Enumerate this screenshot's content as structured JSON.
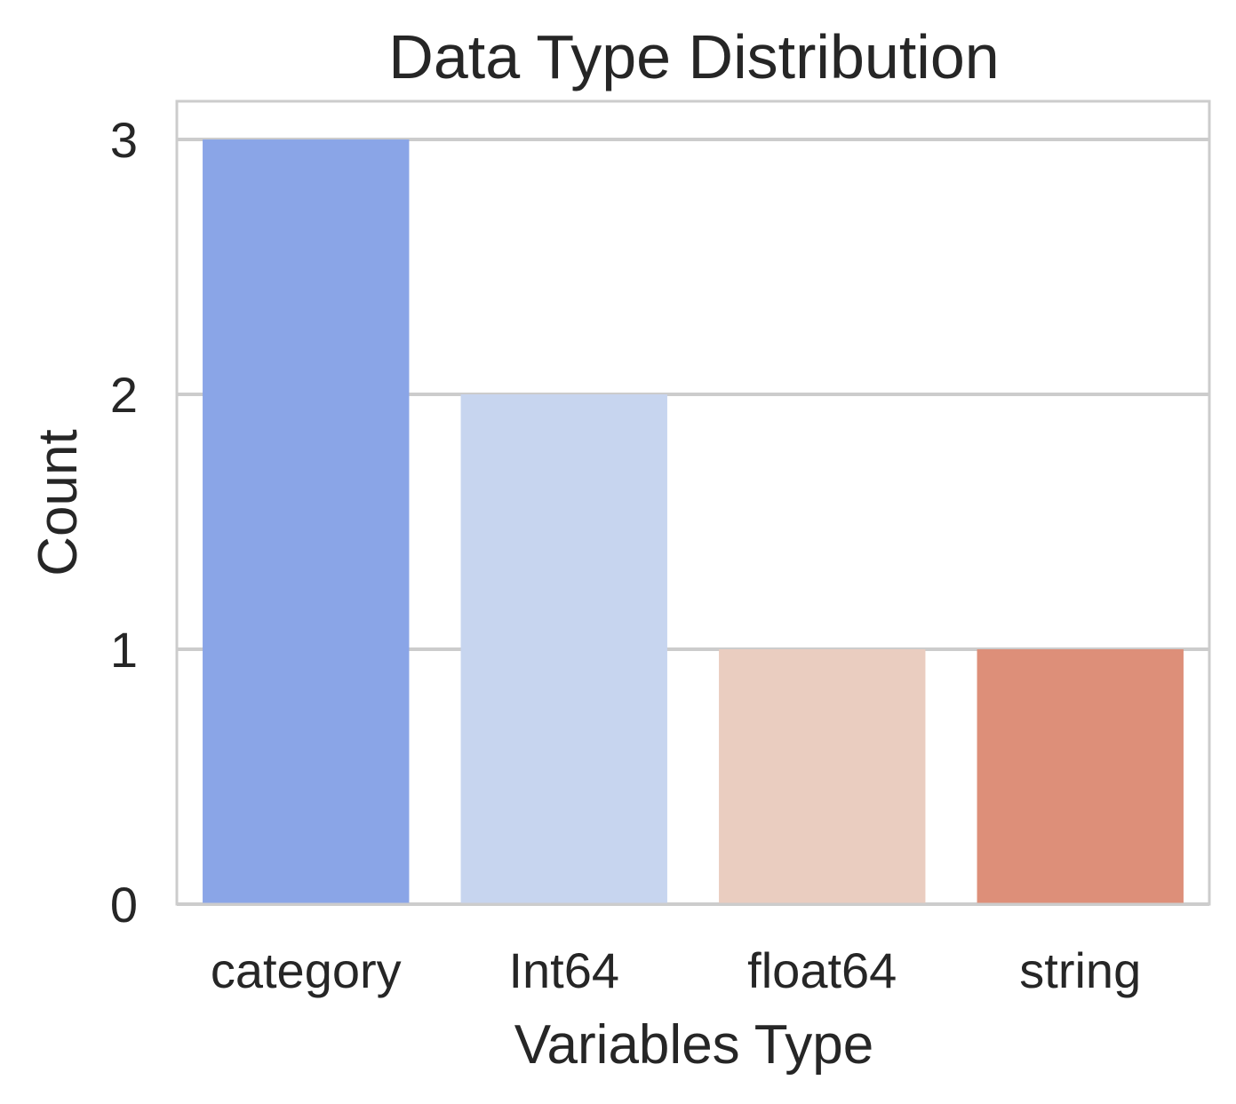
{
  "chart_data": {
    "type": "bar",
    "title": "Data Type Distribution",
    "xlabel": "Variables Type",
    "ylabel": "Count",
    "categories": [
      "category",
      "Int64",
      "float64",
      "string"
    ],
    "values": [
      3,
      2,
      1,
      1
    ],
    "colors": [
      "#8aa5e7",
      "#c7d5ef",
      "#eacdc0",
      "#dd8f79"
    ],
    "ylim": [
      0,
      3.15
    ],
    "yticks": [
      0,
      1,
      2,
      3
    ],
    "grid": true,
    "grid_axis": "y",
    "grid_color": "#cccccc",
    "text_color": "#262626"
  }
}
